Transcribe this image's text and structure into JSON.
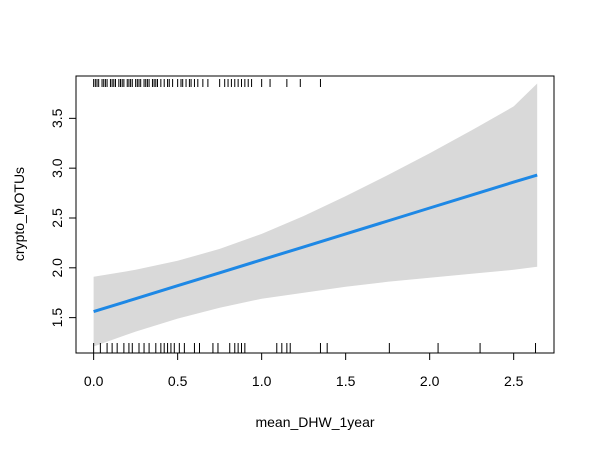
{
  "chart_data": {
    "type": "line",
    "title": "",
    "xlabel": "mean_DHW_1year",
    "ylabel": "crypto_MOTUs",
    "xlim": [
      -0.105,
      2.74
    ],
    "ylim": [
      1.145,
      3.925
    ],
    "xticks": [
      0.0,
      0.5,
      1.0,
      1.5,
      2.0,
      2.5
    ],
    "xtick_labels": [
      "0.0",
      "0.5",
      "1.0",
      "1.5",
      "2.0",
      "2.5"
    ],
    "yticks": [
      1.5,
      2.0,
      2.5,
      3.0,
      3.5
    ],
    "ytick_labels": [
      "1.5",
      "2.0",
      "2.5",
      "3.0",
      "3.5"
    ],
    "grid": false,
    "colors": {
      "line": "#1e88e5",
      "band": "#d9d9d9",
      "rug": "#000000",
      "frame": "#000000"
    },
    "series": [
      {
        "x": [
          0.0,
          0.25,
          0.5,
          0.75,
          1.0,
          1.25,
          1.5,
          1.75,
          2.0,
          2.25,
          2.5,
          2.64
        ],
        "y": [
          1.56,
          1.69,
          1.82,
          1.95,
          2.08,
          2.21,
          2.34,
          2.47,
          2.6,
          2.73,
          2.86,
          2.93
        ],
        "upper": [
          1.91,
          1.98,
          2.07,
          2.19,
          2.34,
          2.52,
          2.72,
          2.93,
          3.15,
          3.38,
          3.62,
          3.85
        ],
        "lower": [
          1.21,
          1.36,
          1.49,
          1.6,
          1.69,
          1.75,
          1.81,
          1.86,
          1.9,
          1.94,
          1.98,
          2.01
        ]
      }
    ],
    "rug_bottom": [
      0.0,
      0.04,
      0.08,
      0.11,
      0.14,
      0.18,
      0.21,
      0.23,
      0.27,
      0.3,
      0.33,
      0.37,
      0.4,
      0.42,
      0.44,
      0.46,
      0.48,
      0.51,
      0.54,
      0.6,
      0.63,
      0.71,
      0.74,
      0.81,
      0.84,
      0.86,
      0.88,
      0.9,
      1.09,
      1.12,
      1.15,
      1.17,
      1.35,
      1.39,
      1.76,
      2.05,
      2.3,
      2.63
    ],
    "rug_top": [
      0.0,
      0.01,
      0.02,
      0.03,
      0.05,
      0.06,
      0.07,
      0.08,
      0.1,
      0.11,
      0.12,
      0.13,
      0.15,
      0.16,
      0.17,
      0.18,
      0.2,
      0.21,
      0.22,
      0.23,
      0.25,
      0.26,
      0.27,
      0.28,
      0.3,
      0.31,
      0.32,
      0.33,
      0.35,
      0.36,
      0.37,
      0.38,
      0.4,
      0.42,
      0.44,
      0.45,
      0.47,
      0.5,
      0.52,
      0.53,
      0.55,
      0.57,
      0.58,
      0.6,
      0.62,
      0.65,
      0.68,
      0.75,
      0.78,
      0.8,
      0.82,
      0.84,
      0.86,
      0.88,
      0.9,
      0.92,
      0.94,
      1.0,
      1.05,
      1.15,
      1.23,
      1.35
    ]
  }
}
